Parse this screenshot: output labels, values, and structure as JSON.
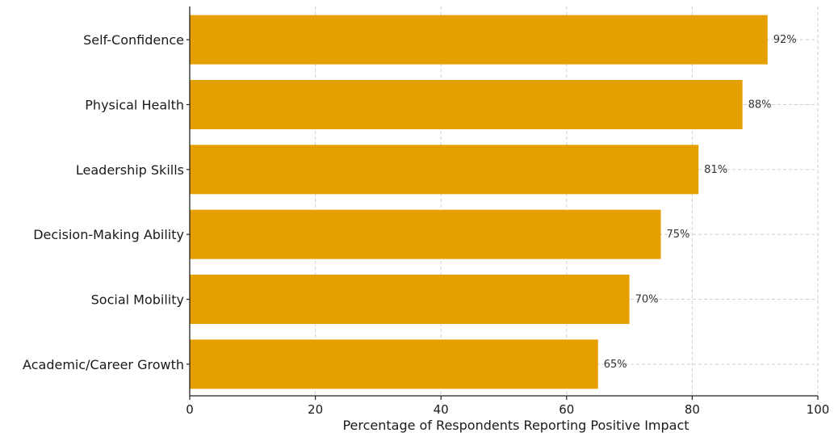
{
  "chart_data": {
    "type": "bar",
    "orientation": "horizontal",
    "categories": [
      "Self-Confidence",
      "Physical Health",
      "Leadership Skills",
      "Decision-Making Ability",
      "Social Mobility",
      "Academic/Career Growth"
    ],
    "values": [
      92,
      88,
      81,
      75,
      70,
      65
    ],
    "data_labels": [
      "92%",
      "88%",
      "81%",
      "75%",
      "70%",
      "65%"
    ],
    "title": "",
    "xlabel": "Percentage of Respondents Reporting Positive Impact",
    "ylabel": "",
    "xlim": [
      0,
      100
    ],
    "x_ticks": [
      0,
      20,
      40,
      60,
      80,
      100
    ],
    "grid": true,
    "legend": "none",
    "bar_color": "#E5A000"
  }
}
